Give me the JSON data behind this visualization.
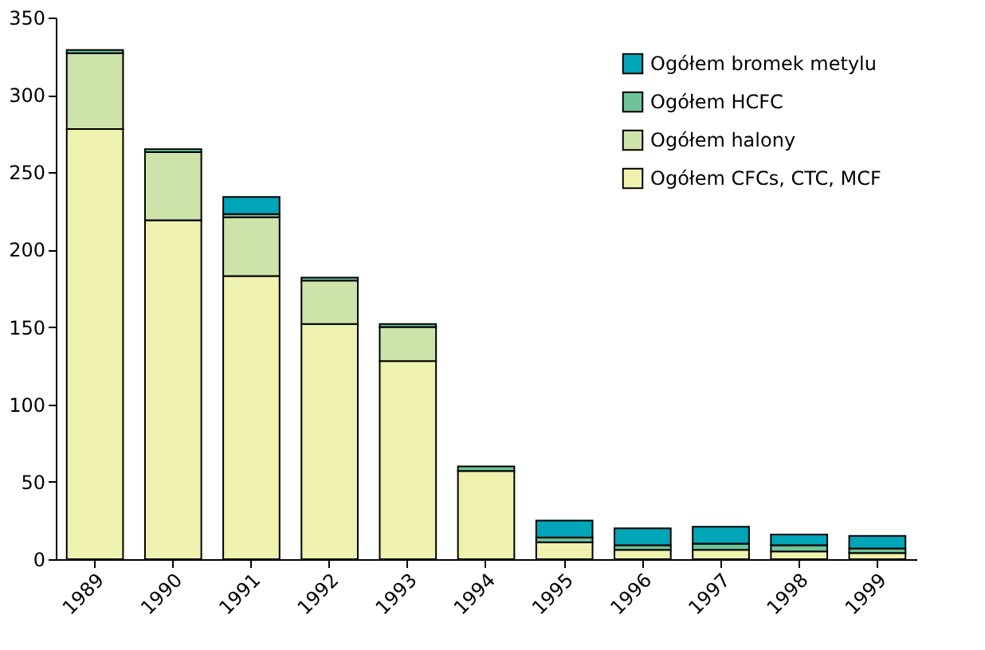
{
  "chart_data": {
    "type": "bar",
    "stacked": true,
    "categories": [
      "1989",
      "1990",
      "1991",
      "1992",
      "1993",
      "1994",
      "1995",
      "1996",
      "1997",
      "1998",
      "1999"
    ],
    "series": [
      {
        "name": "Ogółem CFCs, CTC, MCF",
        "color": "#eef2ae",
        "values": [
          278,
          219,
          183,
          152,
          128,
          57,
          11,
          6,
          6,
          5,
          4
        ]
      },
      {
        "name": "Ogółem halony",
        "color": "#cde3aa",
        "values": [
          49,
          44,
          38,
          28,
          22,
          null,
          null,
          null,
          null,
          null,
          null
        ]
      },
      {
        "name": "Ogółem HCFC",
        "color": "#6ec39a",
        "values": [
          2,
          2,
          2,
          2,
          2,
          3,
          3,
          3,
          4,
          4,
          3
        ]
      },
      {
        "name": "Ogółem bromek metylu",
        "color": "#00a5b8",
        "values": [
          null,
          null,
          11,
          null,
          null,
          null,
          11,
          11,
          11,
          7,
          8
        ]
      }
    ],
    "ylim": [
      0,
      350
    ],
    "yticks": [
      0,
      50,
      100,
      150,
      200,
      250,
      300,
      350
    ],
    "grid": false,
    "legend": "top right"
  }
}
